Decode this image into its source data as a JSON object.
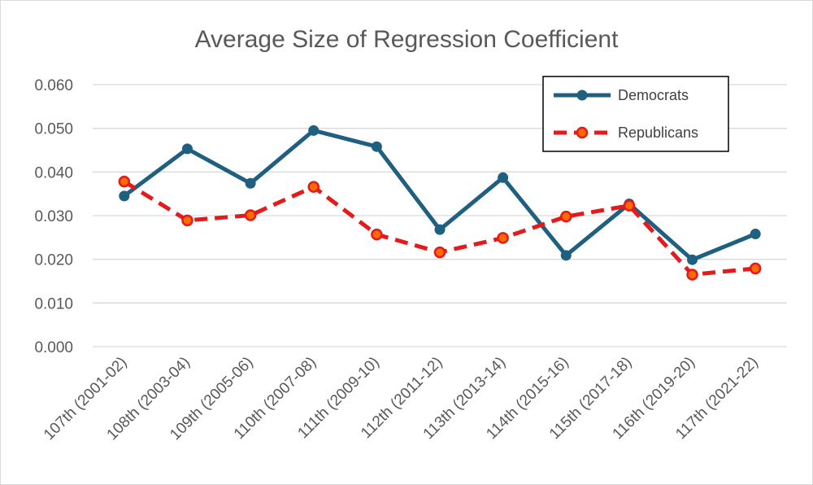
{
  "chart_data": {
    "type": "line",
    "title": "Average Size of Regression Coefficient",
    "xlabel": "",
    "ylabel": "",
    "categories": [
      "107th (2001-02)",
      "108th (2003-04)",
      "109th (2005-06)",
      "110th (2007-08)",
      "111th (2009-10)",
      "112th (2011-12)",
      "113th (2013-14)",
      "114th (2015-16)",
      "115th (2017-18)",
      "116th (2019-20)",
      "117th (2021-22)"
    ],
    "y_ticks": [
      "0.000",
      "0.010",
      "0.020",
      "0.030",
      "0.040",
      "0.050",
      "0.060"
    ],
    "ylim": [
      0,
      0.06
    ],
    "grid": "horizontal",
    "legend_position": "top-right",
    "series": [
      {
        "name": "Democrats",
        "color": "#1f5f7f",
        "style": "solid",
        "marker": "circle",
        "values": [
          0.0345,
          0.0453,
          0.0374,
          0.0495,
          0.0458,
          0.0268,
          0.0387,
          0.0209,
          0.0327,
          0.0199,
          0.0258
        ]
      },
      {
        "name": "Republicans",
        "color": "#e41a1c",
        "marker_color": "#ff6a00",
        "style": "dashed",
        "marker": "circle",
        "values": [
          0.0378,
          0.0289,
          0.0301,
          0.0366,
          0.0257,
          0.0216,
          0.0249,
          0.0298,
          0.0323,
          0.0165,
          0.0179
        ]
      }
    ]
  }
}
